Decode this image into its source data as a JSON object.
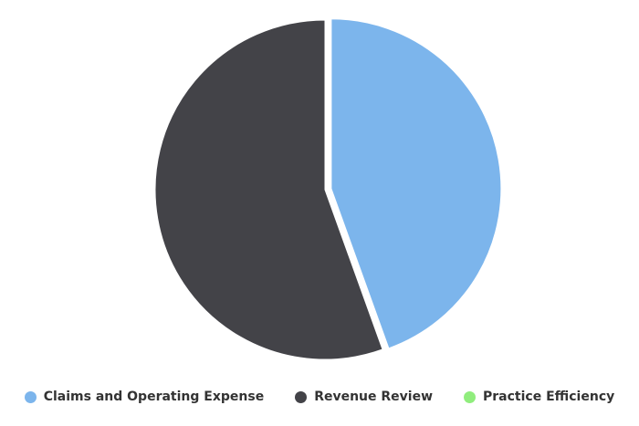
{
  "chart_data": {
    "type": "pie",
    "title": "",
    "categories": [
      "Claims and Operating Expense",
      "Revenue Review",
      "Practice Efficiency"
    ],
    "values": [
      44.5,
      55.5,
      0
    ],
    "colors": [
      "#7cb5ec",
      "#434348",
      "#90ed7d"
    ],
    "exploded": [
      "Claims and Operating Expense"
    ],
    "legend_position": "bottom-center"
  }
}
